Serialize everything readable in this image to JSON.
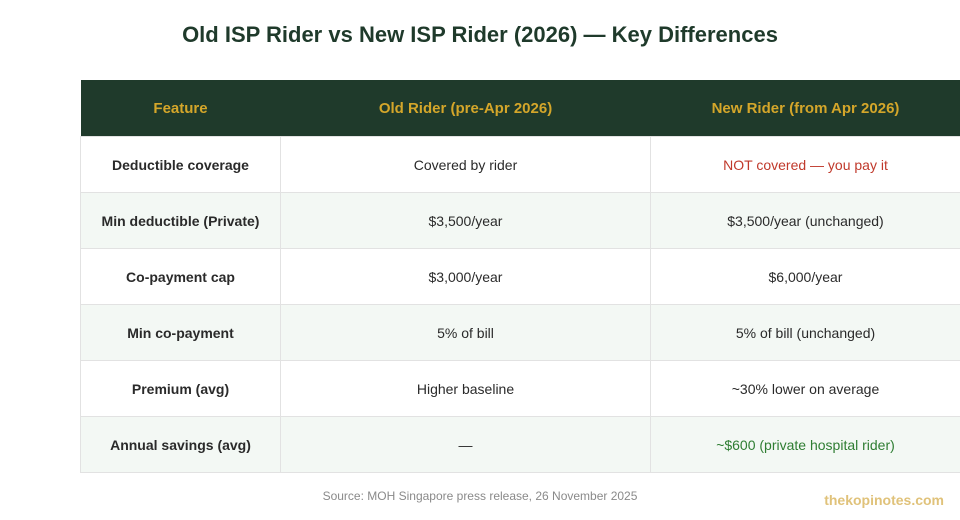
{
  "title": "Old ISP Rider vs New ISP Rider (2026) — Key Differences",
  "table": {
    "headers": [
      "Feature",
      "Old Rider (pre-Apr 2026)",
      "New Rider (from Apr 2026)"
    ],
    "rows": [
      {
        "feature": "Deductible coverage",
        "old": "Covered by rider",
        "new": "NOT covered — you pay it"
      },
      {
        "feature": "Min deductible (Private)",
        "old": "$3,500/year",
        "new": "$3,500/year (unchanged)"
      },
      {
        "feature": "Co-payment cap",
        "old": "$3,000/year",
        "new": "$6,000/year"
      },
      {
        "feature": "Min co-payment",
        "old": "5% of bill",
        "new": "5% of bill (unchanged)"
      },
      {
        "feature": "Premium (avg)",
        "old": "Higher baseline",
        "new": "~30% lower on average"
      },
      {
        "feature": "Annual savings (avg)",
        "old": "—",
        "new": "~$600 (private hospital rider)"
      }
    ]
  },
  "source": "Source: MOH Singapore press release, 26 November 2025",
  "brand": "thekopinotes.com",
  "colors": {
    "header_bg": "#1f3a2b",
    "header_text": "#d4a62a",
    "highlight_negative": "#c0392b",
    "highlight_positive": "#2e7d32",
    "brand": "#e0c27a"
  }
}
